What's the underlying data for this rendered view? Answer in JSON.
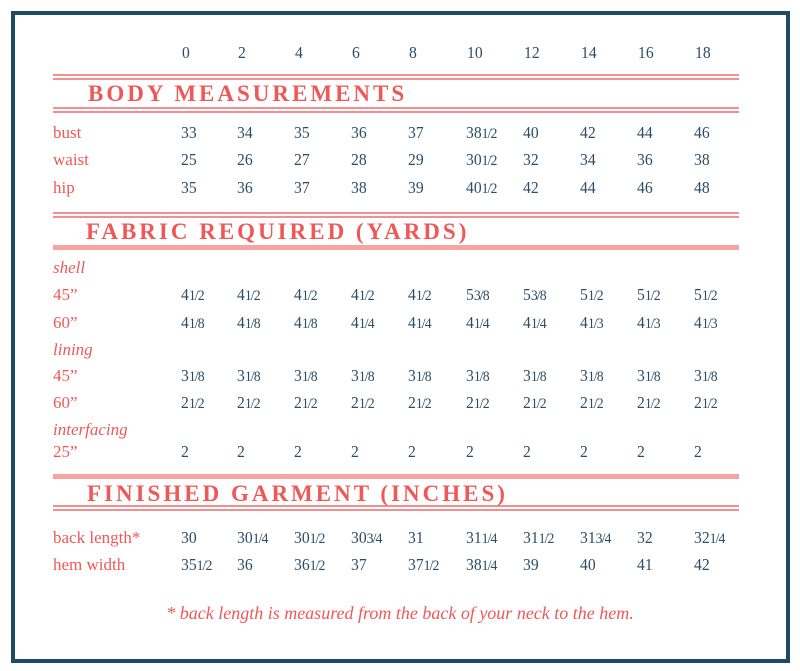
{
  "sizes": [
    "0",
    "2",
    "4",
    "6",
    "8",
    "10",
    "12",
    "14",
    "16",
    "18"
  ],
  "sections": {
    "body": {
      "title": "BODY MEASUREMENTS",
      "rows": [
        {
          "label": "bust",
          "values": [
            "33",
            "34",
            "35",
            "36",
            "37",
            "38 1/2",
            "40",
            "42",
            "44",
            "46"
          ]
        },
        {
          "label": "waist",
          "values": [
            "25",
            "26",
            "27",
            "28",
            "29",
            "30 1/2",
            "32",
            "34",
            "36",
            "38"
          ]
        },
        {
          "label": "hip",
          "values": [
            "35",
            "36",
            "37",
            "38",
            "39",
            "40 1/2",
            "42",
            "44",
            "46",
            "48"
          ]
        }
      ]
    },
    "fabric": {
      "title": "FABRIC REQUIRED (YARDS)",
      "groups": [
        {
          "label": "shell",
          "rows": [
            {
              "label": "45”",
              "values": [
                "4 1/2",
                "4 1/2",
                "4 1/2",
                "4 1/2",
                "4 1/2",
                "5 3/8",
                "5 3/8",
                "5 1/2",
                "5 1/2",
                "5 1/2"
              ]
            },
            {
              "label": "60”",
              "values": [
                "4 1/8",
                "4 1/8",
                "4 1/8",
                "4 1/4",
                "4 1/4",
                "4 1/4",
                "4 1/4",
                "4 1/3",
                "4 1/3",
                "4 1/3"
              ]
            }
          ]
        },
        {
          "label": "lining",
          "rows": [
            {
              "label": "45”",
              "values": [
                "3 1/8",
                "3 1/8",
                "3 1/8",
                "3 1/8",
                "3 1/8",
                "3 1/8",
                "3 1/8",
                "3 1/8",
                "3 1/8",
                "3 1/8"
              ]
            },
            {
              "label": "60”",
              "values": [
                "2 1/2",
                "2 1/2",
                "2 1/2",
                "2 1/2",
                "2 1/2",
                "2 1/2",
                "2 1/2",
                "2 1/2",
                "2 1/2",
                "2 1/2"
              ]
            }
          ]
        },
        {
          "label": "interfacing",
          "rows": [
            {
              "label": "25”",
              "values": [
                "2",
                "2",
                "2",
                "2",
                "2",
                "2",
                "2",
                "2",
                "2",
                "2"
              ]
            }
          ]
        }
      ]
    },
    "finished": {
      "title": "FINISHED GARMENT (INCHES)",
      "rows": [
        {
          "label": "back length*",
          "values": [
            "30",
            "30 1/4",
            "30 1/2",
            "30 3/4",
            "31",
            "31 1/4",
            "31 1/2",
            "31 3/4",
            "32",
            "32 1/4"
          ]
        },
        {
          "label": "hem width",
          "values": [
            "35 1/2",
            "36",
            "36 1/2",
            "37",
            "37 1/2",
            "38 1/4",
            "39",
            "40",
            "41",
            "42"
          ]
        }
      ]
    }
  },
  "footnote": "* back length is measured from the back of your neck to the hem.",
  "colors": {
    "border": "#1f4a66",
    "numbers": "#2b4c66",
    "labels": "#f05757",
    "rules": "#f38f8f"
  }
}
